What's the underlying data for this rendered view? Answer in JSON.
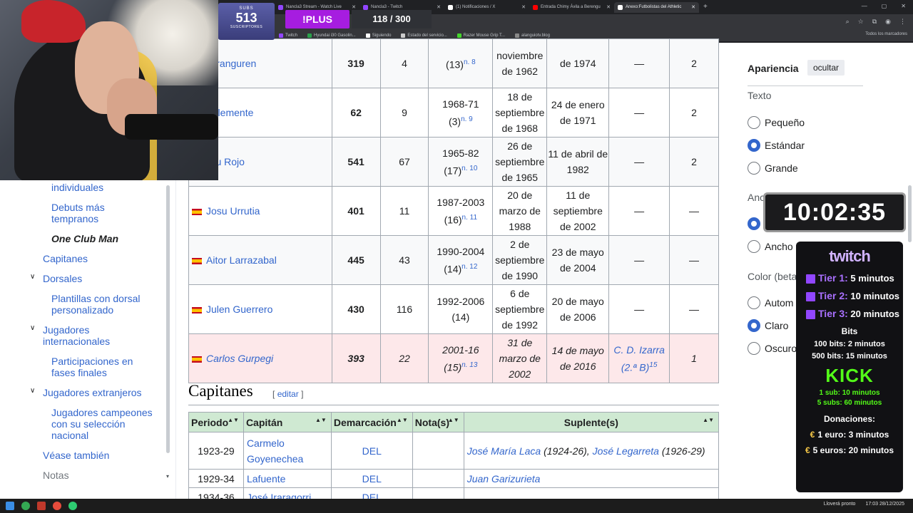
{
  "browser": {
    "tabs": [
      {
        "title": "Nancla3 Stream - Watch Live",
        "color": "#9146ff",
        "active": false
      },
      {
        "title": "Nancla3 - Twitch",
        "color": "#9146ff",
        "active": false
      },
      {
        "title": "(1) Notificaciones / X",
        "color": "#ffffff",
        "active": false
      },
      {
        "title": "Entrada Chimy Ávila a Berengu",
        "color": "#ff0000",
        "active": false
      },
      {
        "title": "Anexo:Futbolistas del Athletic",
        "color": "#ffffff",
        "active": true
      }
    ],
    "bookmarks": [
      {
        "label": "Twitch",
        "color": "#9146ff"
      },
      {
        "label": "Hyundai i30 Gasolin...",
        "color": "#2aa14b"
      },
      {
        "label": "Siguiendo",
        "color": "#ffffff"
      },
      {
        "label": "Estado del servicio...",
        "color": "#cccccc"
      },
      {
        "label": "Razer Mouse Grip T...",
        "color": "#44d62c"
      },
      {
        "label": "alanguiotv.blog",
        "color": "#888888"
      }
    ],
    "all_bookmarks": "Todos los marcadores"
  },
  "overlay": {
    "subs_label": "SUBS",
    "subs_count": "513",
    "subs_sub": "SUSCRIPTORES",
    "plus": "!PLUS",
    "counter": "118 / 300",
    "timer": "10:02:35"
  },
  "twitch_panel": {
    "logo": "twitch",
    "tiers": [
      {
        "name": "Tier 1:",
        "value": "5 minutos"
      },
      {
        "name": "Tier 2:",
        "value": "10 minutos"
      },
      {
        "name": "Tier 3:",
        "value": "20 minutos"
      }
    ],
    "bits_title": "Bits",
    "bits": [
      "100 bits: 2 minutos",
      "500 bits: 15 minutos"
    ],
    "kick_logo": "KICK",
    "kick": [
      "1 sub: 10 minutos",
      "5 subs: 60 minutos"
    ],
    "donations_title": "Donaciones:",
    "donations": [
      {
        "sym": "€",
        "text": "1 euro: 3 minutos"
      },
      {
        "sym": "€",
        "text": "5 euros: 20 minutos"
      }
    ]
  },
  "toc": {
    "items": [
      {
        "label": "individuales",
        "top": 0
      },
      {
        "label": "Debuts más",
        "top": 1
      },
      {
        "label": "tempranos",
        "top": 2
      },
      {
        "label": "One Club Man",
        "top": 3
      },
      {
        "label": "Capitanes",
        "top": 4
      },
      {
        "label": "Dorsales",
        "top": 5
      },
      {
        "label": "Plantillas con dorsal",
        "top": 6
      },
      {
        "label": "personalizado",
        "top": 7
      },
      {
        "label": "Jugadores",
        "top": 8
      },
      {
        "label": "internacionales",
        "top": 9
      },
      {
        "label": "Participaciones en",
        "top": 10
      },
      {
        "label": "fases finales",
        "top": 11
      },
      {
        "label": "Jugadores extranjeros",
        "top": 12
      },
      {
        "label": "Jugadores campeones",
        "top": 13
      },
      {
        "label": "con su selección",
        "top": 14
      },
      {
        "label": "nacional",
        "top": 15
      },
      {
        "label": "Véase también",
        "top": 16
      },
      {
        "label": "Notas",
        "top": 17
      }
    ]
  },
  "players_table": {
    "rows": [
      {
        "name": "atxi Aranguren",
        "flag": false,
        "apps": "319",
        "goals": "4",
        "years": "",
        "years_note": "(13)",
        "note": "n. 8",
        "debut": "noviembre de 1962",
        "last": "de 1974",
        "club": "—",
        "titles": "2",
        "highlight": false
      },
      {
        "name": "vier Clemente",
        "flag": false,
        "apps": "62",
        "goals": "9",
        "years": "1968-71",
        "years_note": "(3)",
        "note": "n. 9",
        "debut": "18 de septiembre de 1968",
        "last": "24 de enero de 1971",
        "club": "—",
        "titles": "2",
        "highlight": false
      },
      {
        "name": "chetxu Rojo",
        "flag": false,
        "apps": "541",
        "goals": "67",
        "years": "1965-82",
        "years_note": "(17)",
        "note": "n. 10",
        "debut": "26 de septiembre de 1965",
        "last": "11 de abril de 1982",
        "club": "—",
        "titles": "2",
        "highlight": false
      },
      {
        "name": "Josu Urrutia",
        "flag": true,
        "apps": "401",
        "goals": "11",
        "years": "1987-2003",
        "years_note": "(16)",
        "note": "n. 11",
        "debut": "20 de marzo de 1988",
        "last": "11 de septiembre de 2002",
        "club": "—",
        "titles": "—",
        "highlight": false
      },
      {
        "name": "Aitor Larrazabal",
        "flag": true,
        "apps": "445",
        "goals": "43",
        "years": "1990-2004",
        "years_note": "(14)",
        "note": "n. 12",
        "debut": "2 de septiembre de 1990",
        "last": "23 de mayo de 2004",
        "club": "—",
        "titles": "—",
        "highlight": false
      },
      {
        "name": "Julen Guerrero",
        "flag": true,
        "apps": "430",
        "goals": "116",
        "years": "1992-2006",
        "years_note": "(14)",
        "note": "",
        "debut": "6 de septiembre de 1992",
        "last": "20 de mayo de 2006",
        "club": "—",
        "titles": "—",
        "highlight": false
      },
      {
        "name": "Carlos Gurpegi",
        "flag": true,
        "apps": "393",
        "goals": "22",
        "years": "2001-16",
        "years_note": "(15)",
        "note": "n. 13",
        "debut": "31 de marzo de 2002",
        "last": "14 de mayo de 2016",
        "club": "C. D. Izarra (2.ª B)",
        "club_sup": "15",
        "titles": "1",
        "highlight": true
      }
    ]
  },
  "captains": {
    "heading": "Capitanes",
    "edit_open": "[",
    "edit": "editar",
    "edit_close": "]",
    "headers": [
      "Periodo",
      "Capitán",
      "Demarcación",
      "Nota(s)",
      "Suplente(s)"
    ],
    "rows": [
      {
        "period": "1923-29",
        "captain": "Carmelo Goyenechea",
        "position": "DEL",
        "note": "",
        "sub1": "José María Laca",
        "sub1_years": "(1924-26),",
        "sub2": "José Legarreta",
        "sub2_years": "(1926-29)"
      },
      {
        "period": "1929-34",
        "captain": "Lafuente",
        "position": "DEL",
        "note": "",
        "sub1": "Juan Garizurieta",
        "sub1_years": "",
        "sub2": "",
        "sub2_years": ""
      },
      {
        "period": "1934-36",
        "captain": "José Iraragorri",
        "position": "DEL",
        "note": "",
        "sub1": "",
        "sub1_years": "",
        "sub2": "",
        "sub2_years": ""
      }
    ]
  },
  "appearance": {
    "title": "Apariencia",
    "hide": "ocultar",
    "text_label": "Texto",
    "text_options": [
      {
        "label": "Pequeño",
        "selected": false
      },
      {
        "label": "Estándar",
        "selected": true
      },
      {
        "label": "Grande",
        "selected": false
      }
    ],
    "width_label": "Anc",
    "width_options": [
      {
        "label": "",
        "selected": true
      },
      {
        "label": "Ancho",
        "selected": false
      }
    ],
    "color_label": "Color (beta",
    "color_options": [
      {
        "label": "Autom",
        "selected": false
      },
      {
        "label": "Claro",
        "selected": true
      },
      {
        "label": "Oscuro",
        "selected": false
      }
    ]
  },
  "taskbar": {
    "weather": "Lloverá pronto",
    "time": "17:03",
    "date": "28/12/2025"
  }
}
